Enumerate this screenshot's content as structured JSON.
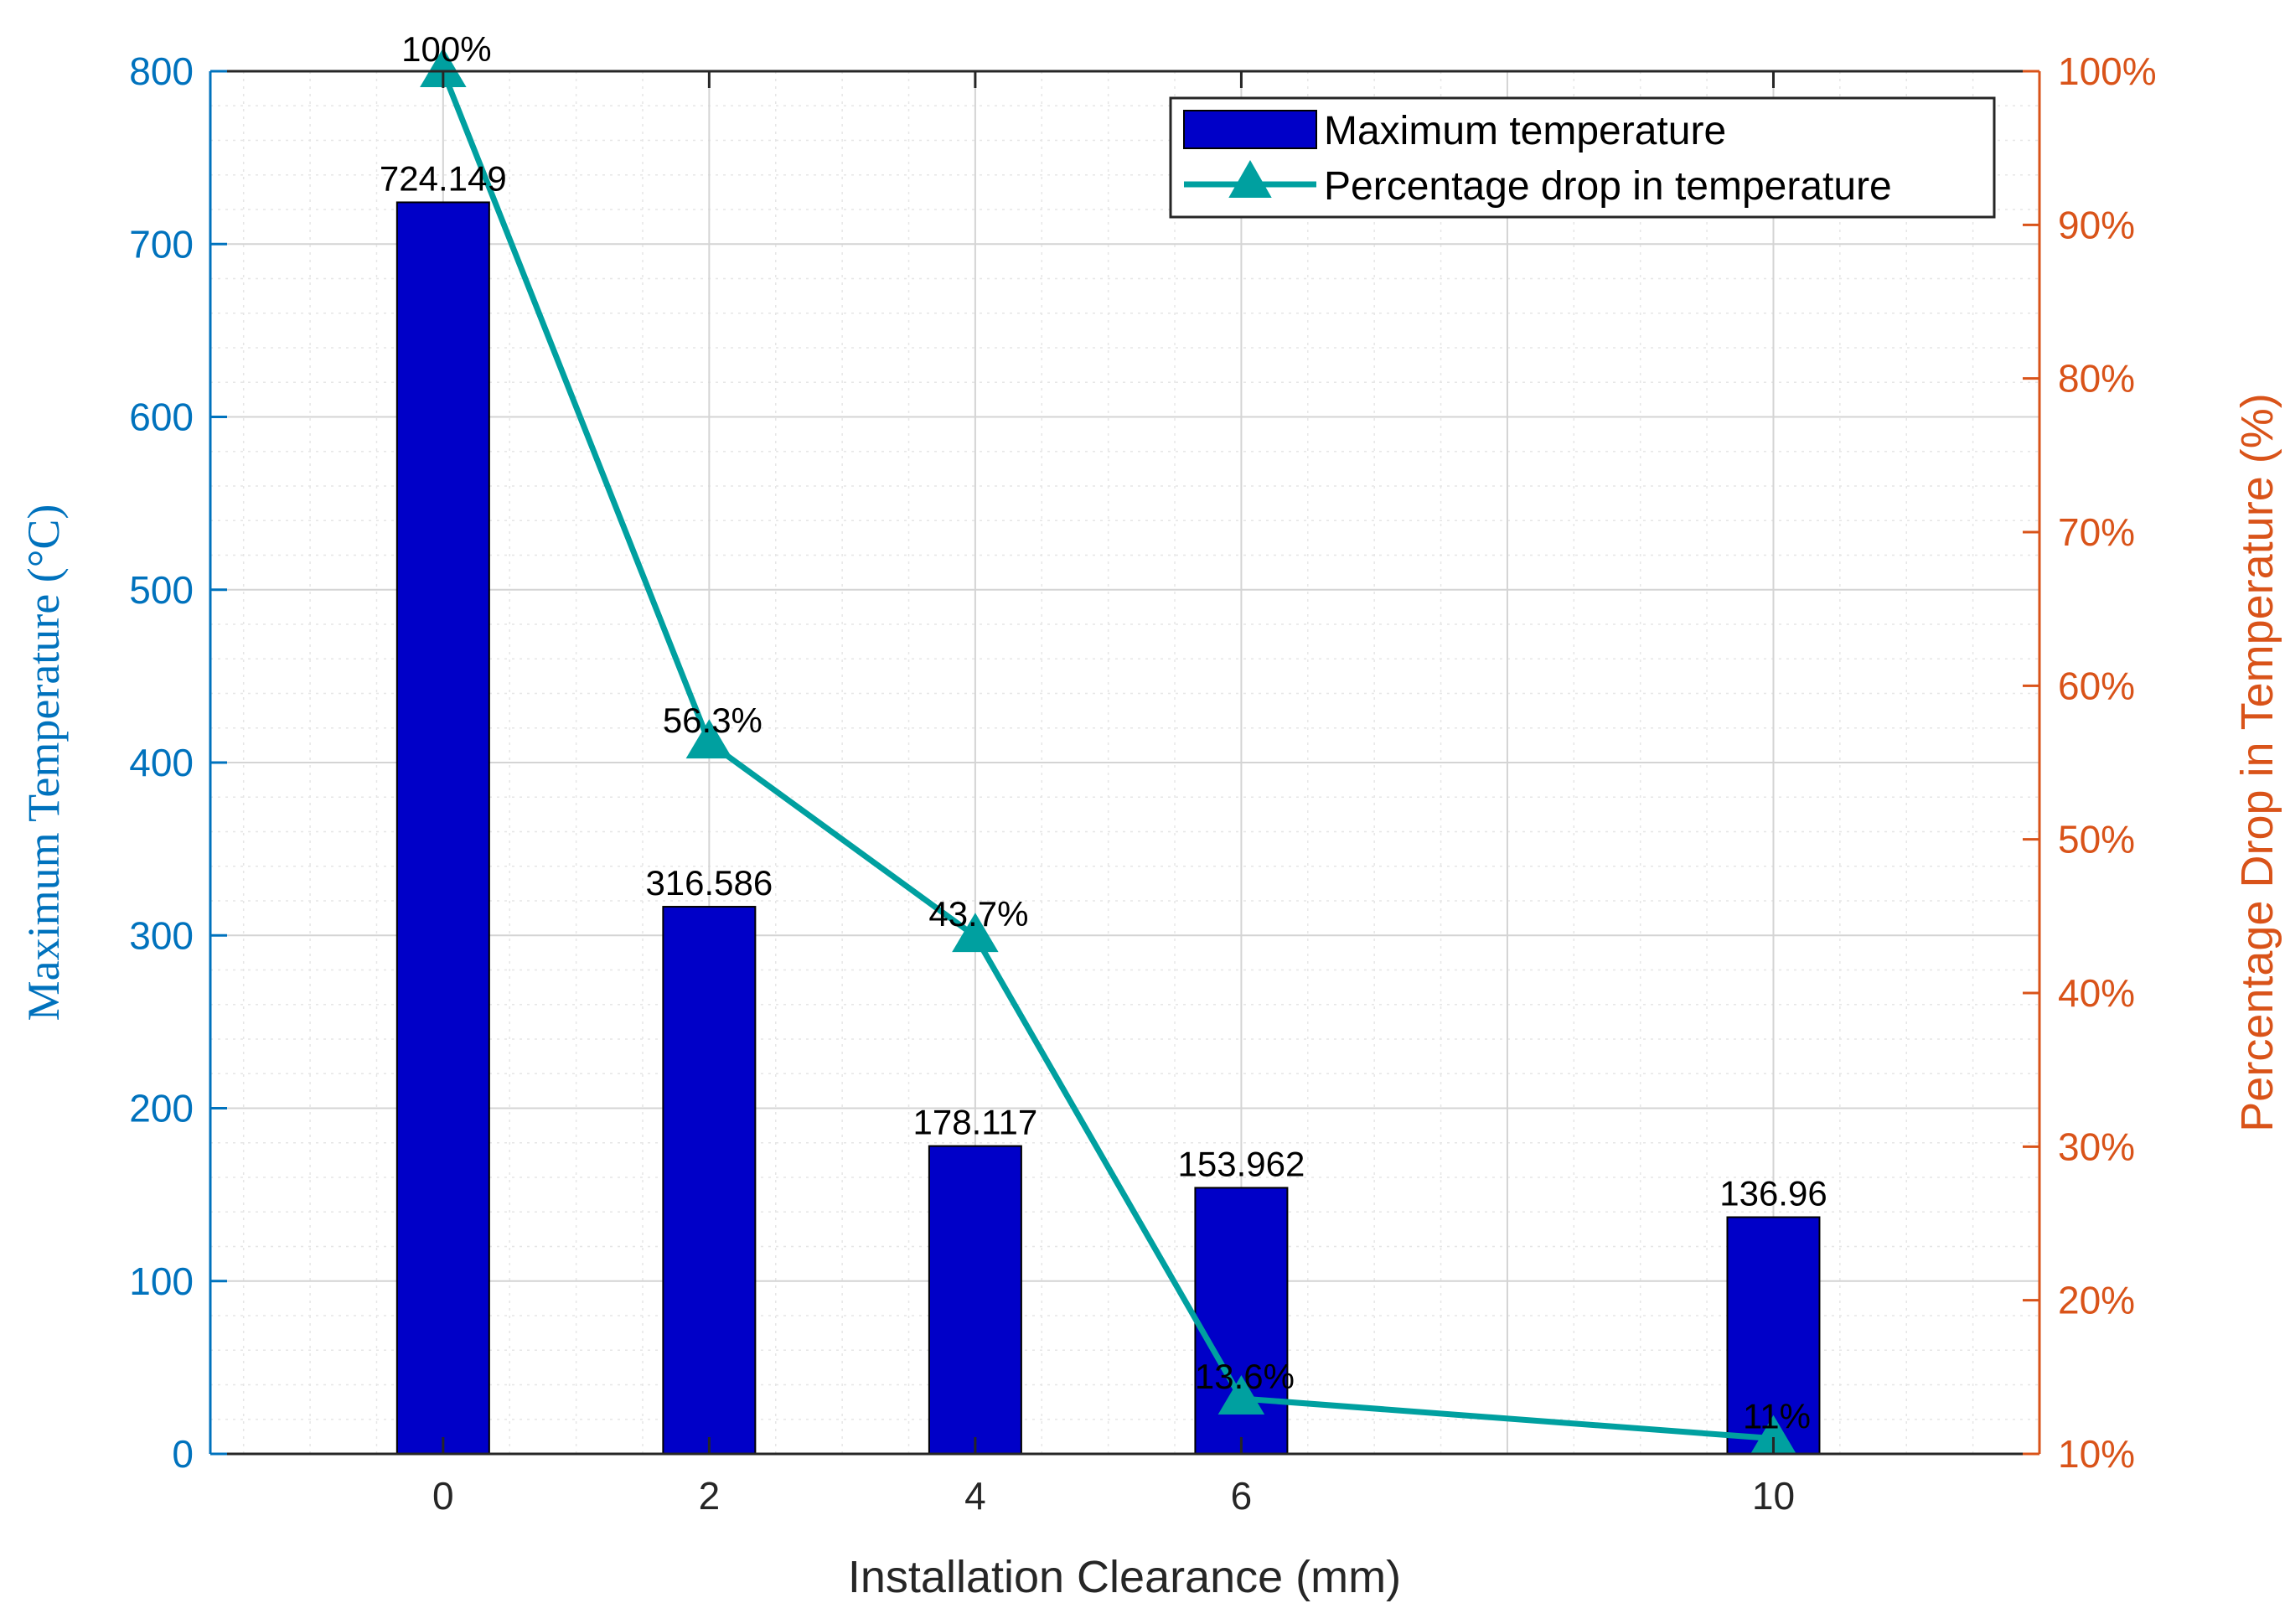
{
  "chart_data": {
    "type": "bar+line",
    "categories": [
      "0",
      "2",
      "4",
      "6",
      "10"
    ],
    "x": [
      0,
      2,
      4,
      6,
      10
    ],
    "xlabel": "Installation Clearance (mm)",
    "xlim": [
      -1.75,
      12
    ],
    "left_axis": {
      "label": "Maximum Temperature (°C)",
      "ylim": [
        0,
        800
      ],
      "ticks": [
        "0",
        "100",
        "200",
        "300",
        "400",
        "500",
        "600",
        "700",
        "800"
      ],
      "color": "#0072BD"
    },
    "right_axis": {
      "label": "Percentage Drop in Temperature (%)",
      "ylim": [
        10,
        100
      ],
      "ticks": [
        "10%",
        "20%",
        "30%",
        "40%",
        "50%",
        "60%",
        "70%",
        "80%",
        "90%",
        "100%"
      ],
      "color": "#D95319"
    },
    "series": [
      {
        "name": "Maximum temperature",
        "kind": "bar",
        "axis": "left",
        "color": "#0000C8",
        "values": [
          724.149,
          316.586,
          178.117,
          153.962,
          136.96
        ],
        "labels": [
          "724.149",
          "316.586",
          "178.117",
          "153.962",
          "136.96"
        ]
      },
      {
        "name": "Percentage drop in temperature",
        "kind": "line",
        "axis": "right",
        "color": "#00A0A0",
        "marker": "triangle",
        "values": [
          100,
          56.3,
          43.7,
          13.6,
          11
        ],
        "labels": [
          "100%",
          "56.3%",
          "43.7%",
          "13.6%",
          "11%"
        ]
      }
    ],
    "grid": true,
    "legend_position": "top-right"
  }
}
